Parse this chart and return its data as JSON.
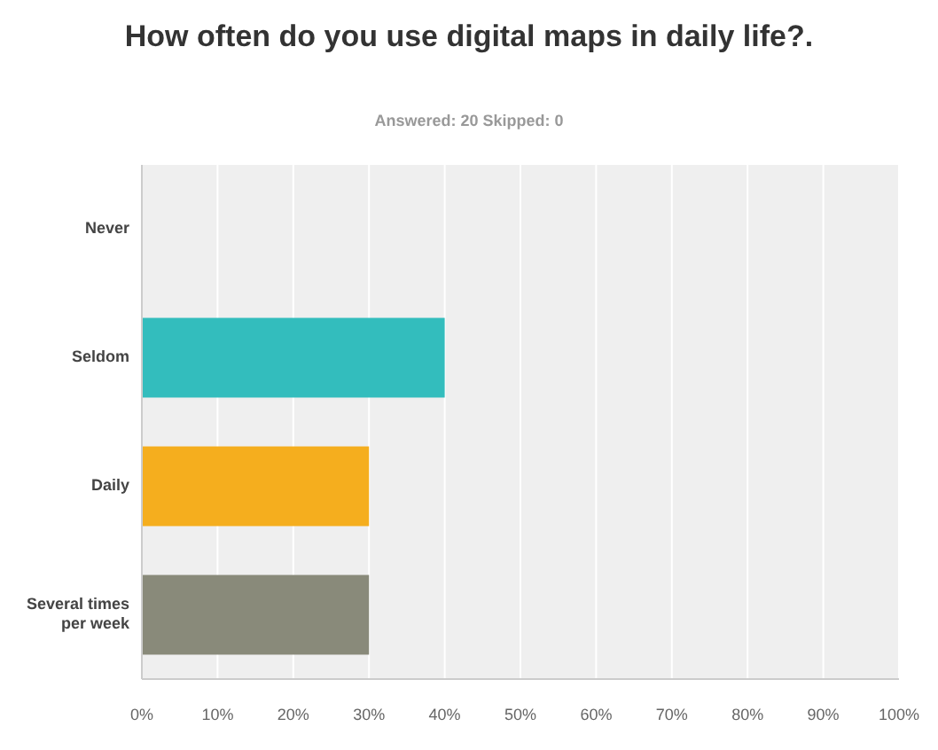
{
  "chart_data": {
    "type": "bar",
    "orientation": "horizontal",
    "title": "How often do you use digital maps in daily life?.",
    "subtitle": "Answered: 20    Skipped: 0",
    "categories": [
      "Never",
      "Seldom",
      "Daily",
      "Several times per week"
    ],
    "values": [
      0,
      40,
      30,
      30
    ],
    "colors": [
      "#33bdbd",
      "#33bdbd",
      "#f5ae1e",
      "#898a7a"
    ],
    "xlim": [
      0,
      100
    ],
    "xticks": [
      {
        "value": 0,
        "label": "0%"
      },
      {
        "value": 10,
        "label": "10%"
      },
      {
        "value": 20,
        "label": "20%"
      },
      {
        "value": 30,
        "label": "30%"
      },
      {
        "value": 40,
        "label": "40%"
      },
      {
        "value": 50,
        "label": "50%"
      },
      {
        "value": 60,
        "label": "60%"
      },
      {
        "value": 70,
        "label": "70%"
      },
      {
        "value": 80,
        "label": "80%"
      },
      {
        "value": 90,
        "label": "90%"
      },
      {
        "value": 100,
        "label": "100%"
      }
    ],
    "grid": "x"
  }
}
